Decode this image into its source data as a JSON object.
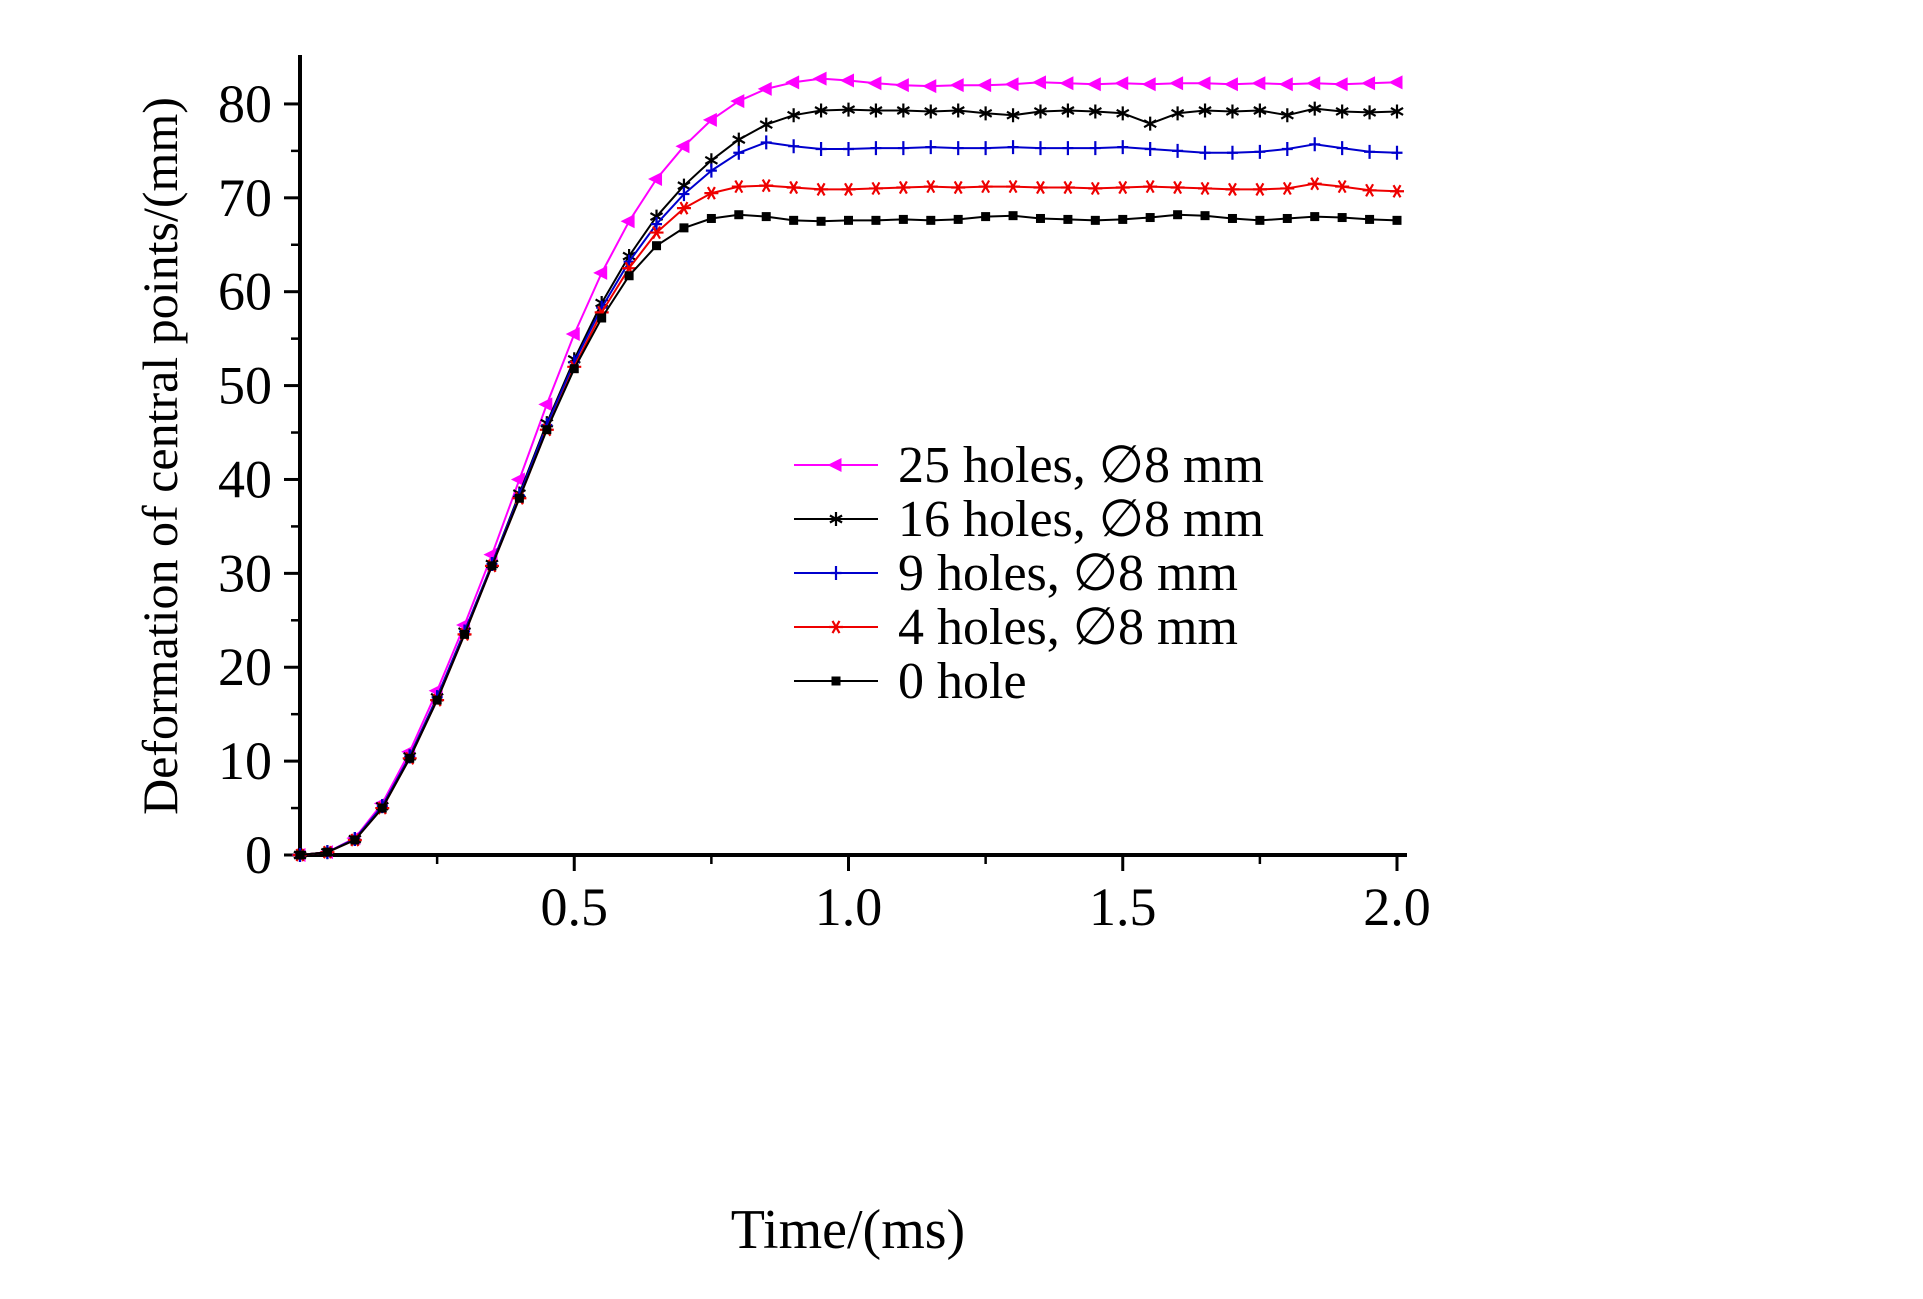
{
  "figure": {
    "background": "#ffffff",
    "axis_color": "#000000"
  },
  "chart_data": {
    "type": "line",
    "title": "",
    "xlabel": "Time/(ms)",
    "ylabel": "Deformation of central points/(mm)",
    "xlim": [
      0,
      2.0
    ],
    "ylim": [
      0,
      85
    ],
    "grid": false,
    "legend_position": "inside-center-right",
    "xticks": [
      0.5,
      1.0,
      1.5,
      2.0
    ],
    "xtick_labels": [
      "0.5",
      "1.0",
      "1.5",
      "2.0"
    ],
    "xminor": [
      0.25,
      0.75,
      1.25,
      1.75
    ],
    "yticks": [
      0,
      10,
      20,
      30,
      40,
      50,
      60,
      70,
      80
    ],
    "ytick_labels": [
      "0",
      "10",
      "20",
      "30",
      "40",
      "50",
      "60",
      "70",
      "80"
    ],
    "yminor": [
      5,
      15,
      25,
      35,
      45,
      55,
      65,
      75
    ],
    "x": [
      0,
      0.05,
      0.1,
      0.15,
      0.2,
      0.25,
      0.3,
      0.35,
      0.4,
      0.45,
      0.5,
      0.55,
      0.6,
      0.65,
      0.7,
      0.75,
      0.8,
      0.85,
      0.9,
      0.95,
      1.0,
      1.05,
      1.1,
      1.15,
      1.2,
      1.25,
      1.3,
      1.35,
      1.4,
      1.45,
      1.5,
      1.55,
      1.6,
      1.65,
      1.7,
      1.75,
      1.8,
      1.85,
      1.9,
      1.95,
      2.0
    ],
    "series": [
      {
        "id": "25-holes",
        "name": "25 holes, ∅8 mm",
        "color": "#ff00ff",
        "marker": "triangle-left",
        "values": [
          0,
          0.3,
          1.8,
          5.5,
          11,
          17.5,
          24.5,
          32,
          40,
          48,
          55.5,
          62,
          67.5,
          72,
          75.5,
          78.3,
          80.3,
          81.6,
          82.3,
          82.7,
          82.5,
          82.2,
          82,
          81.9,
          82,
          82,
          82.1,
          82.3,
          82.2,
          82.1,
          82.2,
          82.1,
          82.2,
          82.2,
          82.1,
          82.2,
          82.1,
          82.2,
          82.1,
          82.2,
          82.3
        ]
      },
      {
        "id": "16-holes",
        "name": "16 holes, ∅8 mm",
        "color": "#000000",
        "marker": "star",
        "values": [
          0,
          0.3,
          1.7,
          5.2,
          10.5,
          16.8,
          23.8,
          31,
          38.5,
          46,
          52.8,
          58.8,
          63.8,
          68,
          71.3,
          74,
          76.2,
          77.8,
          78.8,
          79.3,
          79.4,
          79.3,
          79.3,
          79.2,
          79.3,
          79,
          78.8,
          79.2,
          79.3,
          79.2,
          79,
          77.9,
          79,
          79.3,
          79.2,
          79.3,
          78.8,
          79.5,
          79.2,
          79.1,
          79.2
        ]
      },
      {
        "id": "9-holes",
        "name": "9 holes, ∅8 mm",
        "color": "#0000cd",
        "marker": "plus",
        "values": [
          0,
          0.3,
          1.7,
          5.2,
          10.5,
          16.8,
          23.8,
          31,
          38.3,
          45.8,
          52.5,
          58.3,
          63.2,
          67.2,
          70.4,
          72.9,
          74.8,
          75.9,
          75.5,
          75.2,
          75.2,
          75.3,
          75.3,
          75.4,
          75.3,
          75.3,
          75.4,
          75.3,
          75.3,
          75.3,
          75.4,
          75.2,
          75,
          74.8,
          74.8,
          74.9,
          75.2,
          75.7,
          75.3,
          74.9,
          74.8
        ]
      },
      {
        "id": "4-holes",
        "name": "4 holes, ∅8 mm",
        "color": "#ee0000",
        "marker": "asterisk",
        "values": [
          0,
          0.3,
          1.6,
          5,
          10.3,
          16.5,
          23.5,
          30.8,
          38,
          45.3,
          52,
          57.8,
          62.5,
          66.3,
          68.9,
          70.5,
          71.2,
          71.3,
          71.1,
          70.9,
          70.9,
          71,
          71.1,
          71.2,
          71.1,
          71.2,
          71.2,
          71.1,
          71.1,
          71,
          71.1,
          71.2,
          71.1,
          71,
          70.9,
          70.9,
          71,
          71.5,
          71.2,
          70.8,
          70.7
        ]
      },
      {
        "id": "0-hole",
        "name": "0 hole",
        "color": "#000000",
        "marker": "square",
        "values": [
          0,
          0.3,
          1.6,
          5,
          10.3,
          16.5,
          23.5,
          30.8,
          38,
          45.3,
          51.8,
          57.2,
          61.7,
          64.9,
          66.8,
          67.8,
          68.2,
          68,
          67.6,
          67.5,
          67.6,
          67.6,
          67.7,
          67.6,
          67.7,
          68,
          68.1,
          67.8,
          67.7,
          67.6,
          67.7,
          67.9,
          68.2,
          68.1,
          67.8,
          67.6,
          67.8,
          68,
          67.9,
          67.7,
          67.6
        ]
      }
    ]
  }
}
